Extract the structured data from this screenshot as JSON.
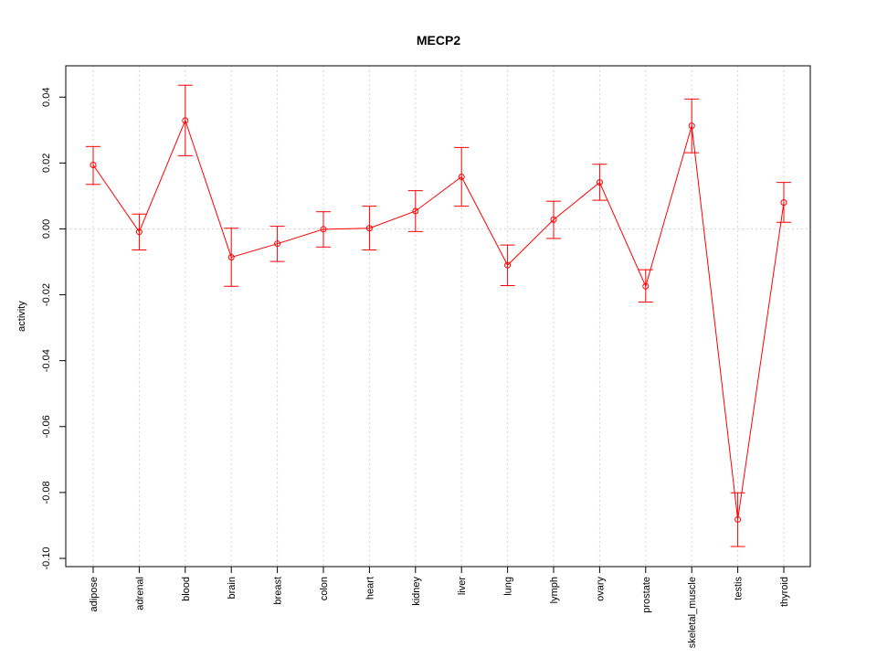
{
  "chart_data": {
    "type": "line",
    "title": "MECP2",
    "xlabel": "",
    "ylabel": "activity",
    "categories": [
      "adipose",
      "adrenal",
      "blood",
      "brain",
      "breast",
      "colon",
      "heart",
      "kidney",
      "liver",
      "lung",
      "lymph",
      "ovary",
      "prostate",
      "skeletal_muscle",
      "testis",
      "thyroid"
    ],
    "series": [
      {
        "values": [
          0.0194,
          -0.0009,
          0.0329,
          -0.0086,
          -0.0045,
          -0.0001,
          0.0002,
          0.0054,
          0.0158,
          -0.011,
          0.0028,
          0.0141,
          -0.0174,
          0.0313,
          -0.0882,
          0.008
        ],
        "error_low": [
          0.0135,
          -0.0064,
          0.0222,
          -0.0174,
          -0.0099,
          -0.0055,
          -0.0064,
          -0.0008,
          0.0069,
          -0.0172,
          -0.0029,
          0.0087,
          -0.0222,
          0.0231,
          -0.0964,
          0.002
        ],
        "error_high": [
          0.025,
          0.0045,
          0.0436,
          0.0002,
          0.0008,
          0.0052,
          0.0069,
          0.0116,
          0.0247,
          -0.0049,
          0.0084,
          0.0196,
          -0.0124,
          0.0394,
          -0.0801,
          0.0141
        ]
      }
    ],
    "y_ticks": [
      0.04,
      0.02,
      0.0,
      -0.02,
      -0.04,
      -0.06,
      -0.08,
      -0.1
    ],
    "y_tick_labels": [
      "0.04",
      "0.02",
      "0.00",
      "-0.02",
      "-0.04",
      "-0.06",
      "-0.08",
      "-0.10"
    ],
    "ylim": [
      -0.1025,
      0.0495
    ],
    "grid": true,
    "reference_line": 0,
    "color": "#ff0000",
    "grid_color": "#d3d3d3"
  }
}
